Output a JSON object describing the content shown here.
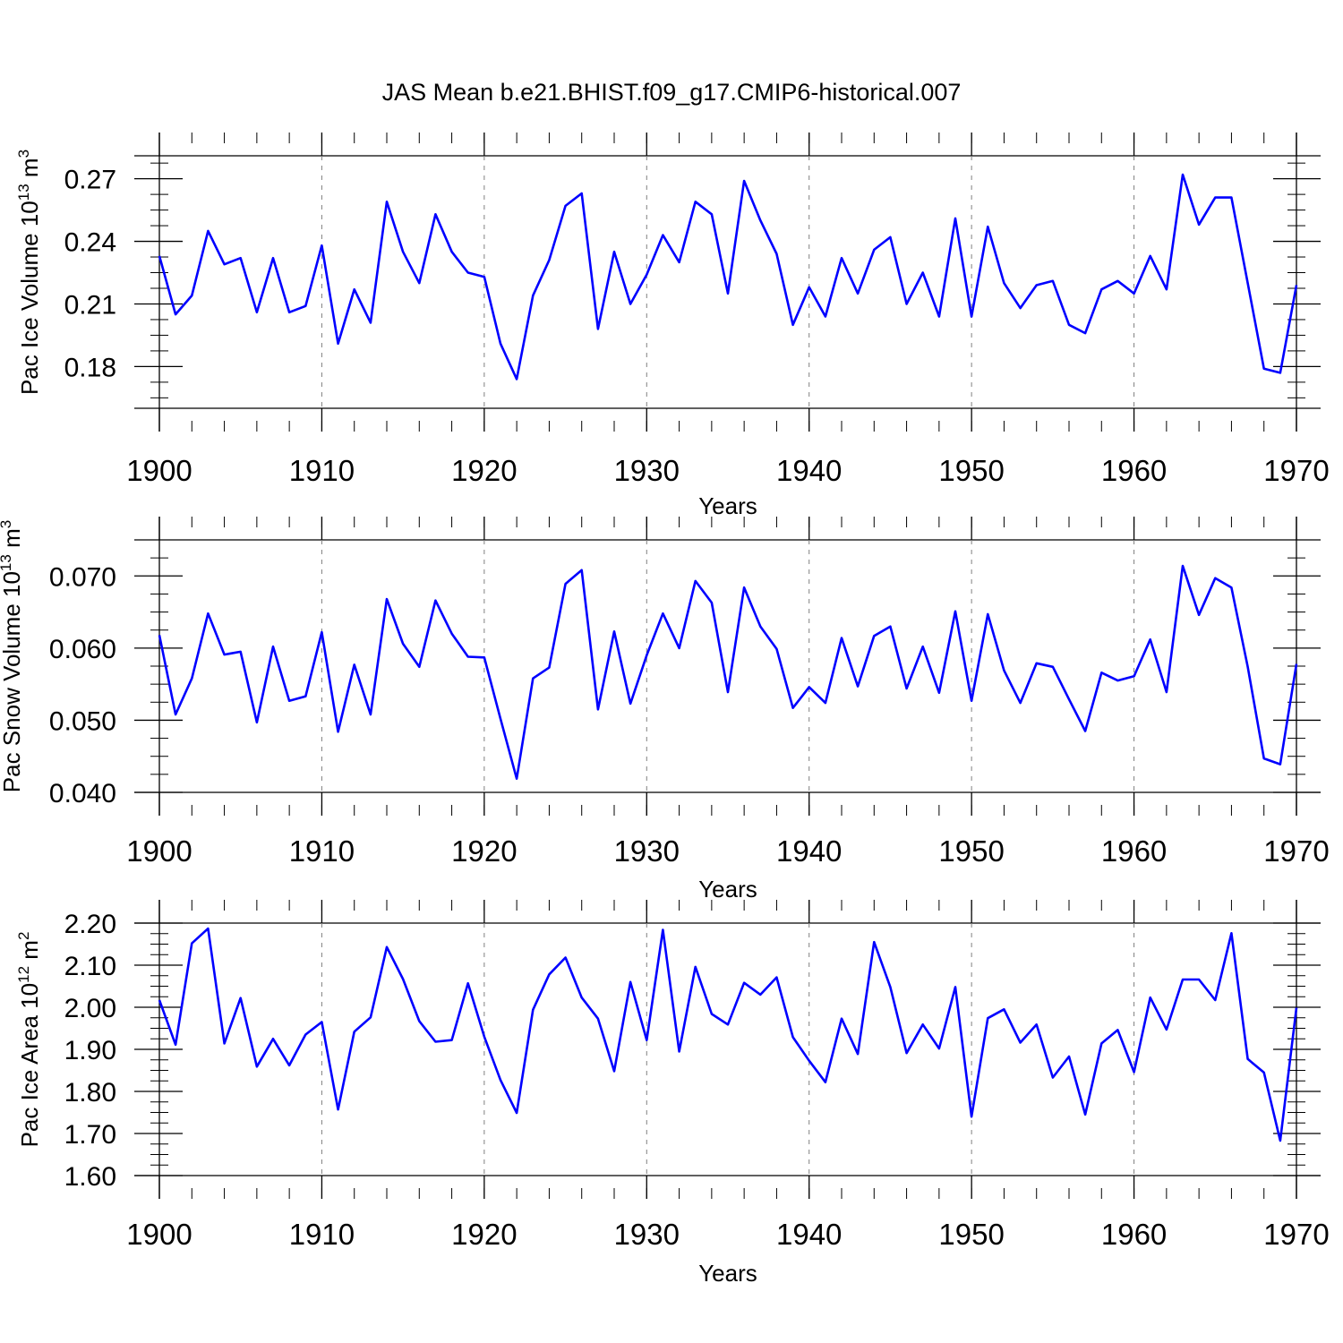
{
  "title": "JAS Mean b.e21.BHIST.f09_g17.CMIP6-historical.007",
  "colors": {
    "line": "#0000ff",
    "axis": "#000000",
    "grid": "#808080"
  },
  "chart_data": [
    {
      "type": "line",
      "ylabel": "Pac Ice Volume 10",
      "ylabel_exponent": "13",
      "ylabel_unit": " m",
      "ylabel_unit_exponent": "3",
      "xlabel": "Years",
      "xlim": [
        1900,
        1970
      ],
      "ylim": [
        0.16,
        0.281
      ],
      "xticks": [
        1900,
        1910,
        1920,
        1930,
        1940,
        1950,
        1960,
        1970
      ],
      "xtick_labels": [
        "1900",
        "1910",
        "1920",
        "1930",
        "1940",
        "1950",
        "1960",
        "1970"
      ],
      "yticks": [
        0.18,
        0.21,
        0.24,
        0.27
      ],
      "ytick_labels": [
        "0.18",
        "0.21",
        "0.24",
        "0.27"
      ],
      "grid": "vertical dashed at decades",
      "x": [
        1900,
        1901,
        1902,
        1903,
        1904,
        1905,
        1906,
        1907,
        1908,
        1909,
        1910,
        1911,
        1912,
        1913,
        1914,
        1915,
        1916,
        1917,
        1918,
        1919,
        1920,
        1921,
        1922,
        1923,
        1924,
        1925,
        1926,
        1927,
        1928,
        1929,
        1930,
        1931,
        1932,
        1933,
        1934,
        1935,
        1936,
        1937,
        1938,
        1939,
        1940,
        1941,
        1942,
        1943,
        1944,
        1945,
        1946,
        1947,
        1948,
        1949,
        1950,
        1951,
        1952,
        1953,
        1954,
        1955,
        1956,
        1957,
        1958,
        1959,
        1960,
        1961,
        1962,
        1963,
        1964,
        1965,
        1966,
        1967,
        1968,
        1969,
        1970
      ],
      "y": [
        0.233,
        0.205,
        0.214,
        0.245,
        0.229,
        0.232,
        0.206,
        0.232,
        0.206,
        0.209,
        0.238,
        0.191,
        0.217,
        0.201,
        0.259,
        0.235,
        0.22,
        0.253,
        0.235,
        0.225,
        0.223,
        0.191,
        0.174,
        0.214,
        0.231,
        0.257,
        0.263,
        0.198,
        0.235,
        0.21,
        0.224,
        0.243,
        0.23,
        0.259,
        0.253,
        0.215,
        0.269,
        0.25,
        0.234,
        0.2,
        0.218,
        0.204,
        0.232,
        0.215,
        0.236,
        0.242,
        0.21,
        0.225,
        0.204,
        0.251,
        0.204,
        0.247,
        0.22,
        0.208,
        0.219,
        0.221,
        0.2,
        0.196,
        0.217,
        0.221,
        0.215,
        0.233,
        0.217,
        0.272,
        0.248,
        0.261,
        0.261,
        0.22,
        0.179,
        0.177,
        0.219
      ]
    },
    {
      "type": "line",
      "ylabel": "Pac Snow Volume 10",
      "ylabel_exponent": "13",
      "ylabel_unit": " m",
      "ylabel_unit_exponent": "3",
      "xlabel": "Years",
      "xlim": [
        1900,
        1970
      ],
      "ylim": [
        0.04,
        0.075
      ],
      "xticks": [
        1900,
        1910,
        1920,
        1930,
        1940,
        1950,
        1960,
        1970
      ],
      "xtick_labels": [
        "1900",
        "1910",
        "1920",
        "1930",
        "1940",
        "1950",
        "1960",
        "1970"
      ],
      "yticks": [
        0.04,
        0.05,
        0.06,
        0.07
      ],
      "ytick_labels": [
        "0.040",
        "0.050",
        "0.060",
        "0.070"
      ],
      "grid": "vertical dashed at decades",
      "x": [
        1900,
        1901,
        1902,
        1903,
        1904,
        1905,
        1906,
        1907,
        1908,
        1909,
        1910,
        1911,
        1912,
        1913,
        1914,
        1915,
        1916,
        1917,
        1918,
        1919,
        1920,
        1921,
        1922,
        1923,
        1924,
        1925,
        1926,
        1927,
        1928,
        1929,
        1930,
        1931,
        1932,
        1933,
        1934,
        1935,
        1936,
        1937,
        1938,
        1939,
        1940,
        1941,
        1942,
        1943,
        1944,
        1945,
        1946,
        1947,
        1948,
        1949,
        1950,
        1951,
        1952,
        1953,
        1954,
        1955,
        1956,
        1957,
        1958,
        1959,
        1960,
        1961,
        1962,
        1963,
        1964,
        1965,
        1966,
        1967,
        1968,
        1969,
        1970
      ],
      "y": [
        0.0618,
        0.0508,
        0.0558,
        0.0648,
        0.0591,
        0.0595,
        0.0497,
        0.0602,
        0.0527,
        0.0533,
        0.0622,
        0.0484,
        0.0577,
        0.0508,
        0.0668,
        0.0606,
        0.0574,
        0.0666,
        0.062,
        0.0588,
        0.0587,
        0.0502,
        0.0419,
        0.0558,
        0.0573,
        0.0689,
        0.0708,
        0.0515,
        0.0623,
        0.0523,
        0.059,
        0.0648,
        0.06,
        0.0693,
        0.0663,
        0.0539,
        0.0684,
        0.063,
        0.0599,
        0.0517,
        0.0546,
        0.0524,
        0.0614,
        0.0547,
        0.0617,
        0.063,
        0.0544,
        0.0602,
        0.0538,
        0.0651,
        0.0527,
        0.0647,
        0.0569,
        0.0524,
        0.0579,
        0.0574,
        0.0529,
        0.0485,
        0.0566,
        0.0555,
        0.0561,
        0.0612,
        0.0539,
        0.0714,
        0.0646,
        0.0697,
        0.0684,
        0.0574,
        0.0447,
        0.0439,
        0.0578
      ]
    },
    {
      "type": "line",
      "ylabel": "Pac Ice Area 10",
      "ylabel_exponent": "12",
      "ylabel_unit": " m",
      "ylabel_unit_exponent": "2",
      "xlabel": "Years",
      "xlim": [
        1900,
        1970
      ],
      "ylim": [
        1.6,
        2.2
      ],
      "xticks": [
        1900,
        1910,
        1920,
        1930,
        1940,
        1950,
        1960,
        1970
      ],
      "xtick_labels": [
        "1900",
        "1910",
        "1920",
        "1930",
        "1940",
        "1950",
        "1960",
        "1970"
      ],
      "yticks": [
        1.6,
        1.7,
        1.8,
        1.9,
        2.0,
        2.1,
        2.2
      ],
      "ytick_labels": [
        "1.60",
        "1.70",
        "1.80",
        "1.90",
        "2.00",
        "2.10",
        "2.20"
      ],
      "grid": "vertical dashed at decades",
      "x": [
        1900,
        1901,
        1902,
        1903,
        1904,
        1905,
        1906,
        1907,
        1908,
        1909,
        1910,
        1911,
        1912,
        1913,
        1914,
        1915,
        1916,
        1917,
        1918,
        1919,
        1920,
        1921,
        1922,
        1923,
        1924,
        1925,
        1926,
        1927,
        1928,
        1929,
        1930,
        1931,
        1932,
        1933,
        1934,
        1935,
        1936,
        1937,
        1938,
        1939,
        1940,
        1941,
        1942,
        1943,
        1944,
        1945,
        1946,
        1947,
        1948,
        1949,
        1950,
        1951,
        1952,
        1953,
        1954,
        1955,
        1956,
        1957,
        1958,
        1959,
        1960,
        1961,
        1962,
        1963,
        1964,
        1965,
        1966,
        1967,
        1968,
        1969,
        1970
      ],
      "y": [
        2.017,
        1.911,
        2.152,
        2.187,
        1.914,
        2.022,
        1.859,
        1.925,
        1.862,
        1.935,
        1.965,
        1.757,
        1.942,
        1.976,
        2.143,
        2.067,
        1.967,
        1.918,
        1.922,
        2.057,
        1.93,
        1.827,
        1.749,
        1.994,
        2.078,
        2.118,
        2.023,
        1.973,
        1.848,
        2.06,
        1.922,
        2.184,
        1.895,
        2.096,
        1.984,
        1.959,
        2.058,
        2.03,
        2.071,
        1.929,
        1.873,
        1.822,
        1.973,
        1.889,
        2.155,
        2.048,
        1.891,
        1.959,
        1.902,
        2.048,
        1.74,
        1.974,
        1.995,
        1.916,
        1.959,
        1.833,
        1.883,
        1.745,
        1.914,
        1.946,
        1.846,
        2.023,
        1.947,
        2.066,
        2.066,
        2.017,
        2.176,
        1.877,
        1.845,
        1.683,
        1.999
      ]
    }
  ]
}
